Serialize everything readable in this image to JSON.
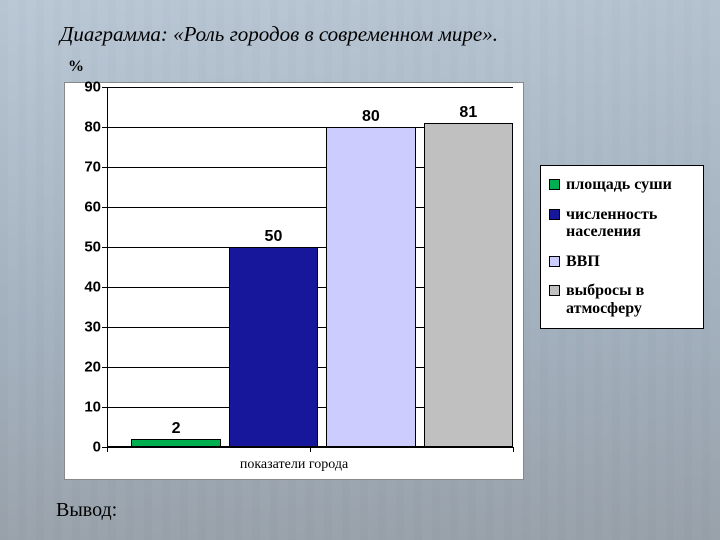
{
  "title": "Диаграмма: «Роль городов в современном мире».",
  "y_axis_label": "%",
  "x_axis_label": "показатели города",
  "conclusion_label": "Вывод:",
  "chart": {
    "type": "bar",
    "ylim": [
      0,
      90
    ],
    "ytick_step": 10,
    "yticks": [
      0,
      10,
      20,
      30,
      40,
      50,
      60,
      70,
      80,
      90
    ],
    "background_color": "#ffffff",
    "grid_color": "#000000",
    "axis_color": "#000000",
    "title_fontsize": 21,
    "label_fontsize": 15,
    "value_fontsize": 16,
    "legend_fontsize": 16,
    "bar_width_pct": 22,
    "bars": [
      {
        "label": "площадь суши",
        "value": 2,
        "color": "#00b050"
      },
      {
        "label": "численность населения",
        "value": 50,
        "color": "#17179b"
      },
      {
        "label": "ВВП",
        "value": 80,
        "color": "#ccccff"
      },
      {
        "label": "выбросы в атмосферу",
        "value": 81,
        "color": "#c0c0c0"
      }
    ],
    "bar_left_pct": [
      6,
      30,
      54,
      78
    ]
  }
}
